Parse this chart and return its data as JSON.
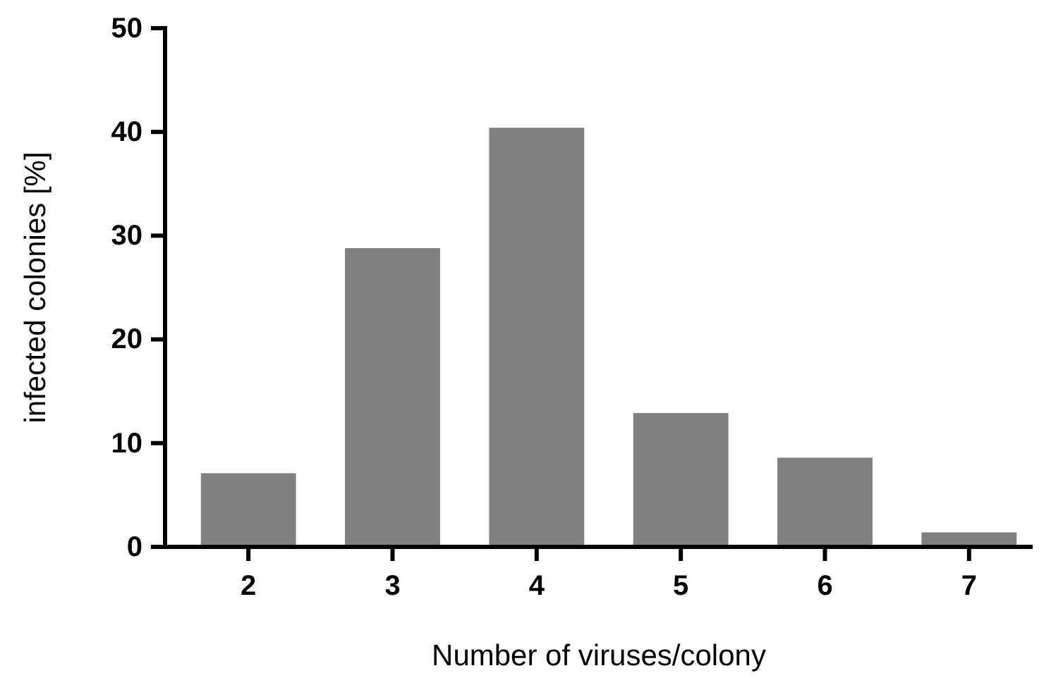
{
  "chart_data": {
    "type": "bar",
    "xlabel": "Number of viruses/colony",
    "ylabel": "infected colonies [%]",
    "categories": [
      "2",
      "3",
      "4",
      "5",
      "6",
      "7"
    ],
    "values": [
      7.1,
      28.8,
      40.4,
      12.9,
      8.6,
      1.4
    ],
    "color": "#808080",
    "ylim": [
      0,
      50
    ],
    "yticks": [
      0,
      10,
      20,
      30,
      40,
      50
    ],
    "grid": false,
    "legend": false
  }
}
